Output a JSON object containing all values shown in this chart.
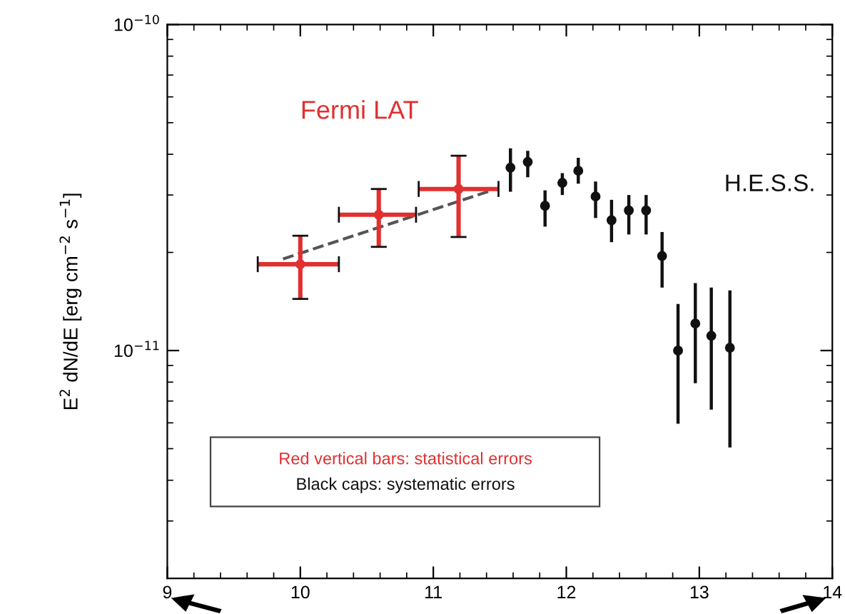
{
  "chart_data": {
    "type": "scatter",
    "xlim": [
      9,
      14
    ],
    "xticks": [
      9,
      10,
      11,
      12,
      13,
      14
    ],
    "ylim": [
      2e-12,
      1e-10
    ],
    "log": "y",
    "yticks": [
      {
        "value": 1e-10,
        "label": "10$^{−10}$"
      },
      {
        "value": 1e-11,
        "label": "10$^{−11}$"
      }
    ],
    "ylabel": "E$^{2}$ dN/dE [erg cm$^{−2}$ s$^{−1}$]",
    "grid": false,
    "legend": false,
    "marker": "circle",
    "series": [
      {
        "name": "Fermi LAT",
        "color": "#e03030",
        "x": [
          10.0,
          10.59,
          11.19
        ],
        "values": [
          1.84e-11,
          2.61e-11,
          3.13e-11
        ],
        "xerrors": [
          [
            9.68,
            10.29
          ],
          [
            10.29,
            10.87
          ],
          [
            10.89,
            11.49
          ]
        ],
        "errors": [
          [
            1.44e-11,
            2.25e-11
          ],
          [
            2.08e-11,
            3.13e-11
          ],
          [
            2.23e-11,
            3.96e-11
          ]
        ]
      },
      {
        "name": "H.E.S.S.",
        "color": "#111111",
        "x": [
          11.58,
          11.71,
          11.84,
          11.97,
          12.09,
          12.22,
          12.34,
          12.47,
          12.6,
          12.72,
          12.84,
          12.97,
          13.09,
          13.23
        ],
        "values": [
          3.64e-11,
          3.79e-11,
          2.78e-11,
          3.27e-11,
          3.56e-11,
          2.97e-11,
          2.51e-11,
          2.69e-11,
          2.69e-11,
          1.95e-11,
          1e-11,
          1.21e-11,
          1.11e-11,
          1.02e-11
        ],
        "errors": [
          [
            3.07e-11,
            4.17e-11
          ],
          [
            3.4e-11,
            4.1e-11
          ],
          [
            2.4e-11,
            3.1e-11
          ],
          [
            3e-11,
            3.5e-11
          ],
          [
            3.25e-11,
            3.9e-11
          ],
          [
            2.55e-11,
            3.3e-11
          ],
          [
            2.15e-11,
            2.9e-11
          ],
          [
            2.27e-11,
            3e-11
          ],
          [
            2.27e-11,
            3e-11
          ],
          [
            1.56e-11,
            2.31e-11
          ],
          [
            5.96e-12,
            1.39e-11
          ],
          [
            7.94e-12,
            1.61e-11
          ],
          [
            6.59e-12,
            1.56e-11
          ],
          [
            5.04e-12,
            1.53e-11
          ]
        ]
      },
      {
        "type": "line",
        "color": "#555555",
        "line_style": "dashed",
        "marker": "none",
        "x": [
          9.87,
          11.44
        ],
        "values": [
          1.91e-11,
          3.1e-11
        ]
      }
    ],
    "annotations": [
      "Red vertical bars: statistical errors",
      "Black caps: systematic errors"
    ]
  }
}
